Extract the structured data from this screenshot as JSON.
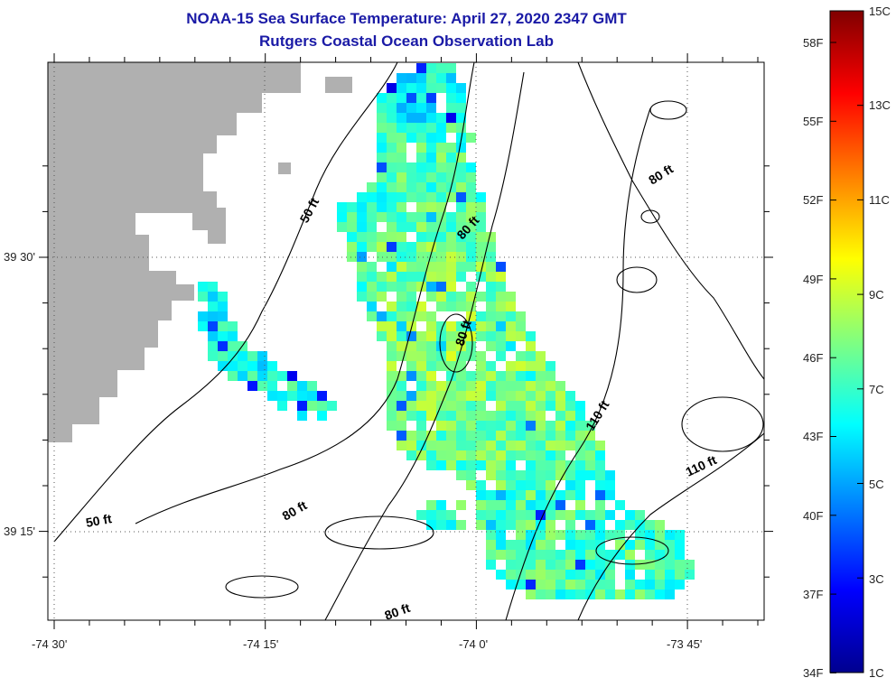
{
  "header": {
    "title": "NOAA-15 Sea Surface Temperature:  April 27, 2020 2347 GMT",
    "subtitle": "Rutgers Coastal Ocean Observation Lab"
  },
  "axes": {
    "longitude_labels": [
      "-74 30'",
      "-74 15'",
      "-74 0'",
      "-73 45'"
    ],
    "latitude_labels": [
      "39 30'",
      "39 15'"
    ]
  },
  "isobaths": [
    "50 ft",
    "80 ft",
    "80 ft",
    "80 ft",
    "110 ft",
    "110 ft",
    "50 ft",
    "80 ft",
    "80 ft"
  ],
  "colorbar": {
    "fahrenheit": [
      "58F",
      "55F",
      "52F",
      "49F",
      "46F",
      "43F",
      "40F",
      "37F",
      "34F"
    ],
    "celsius": [
      "15C",
      "13C",
      "11C",
      "9C",
      "7C",
      "5C",
      "3C",
      "1C"
    ],
    "range_c": [
      1,
      15
    ]
  },
  "colors": {
    "title": "#1a1aa6",
    "land": "#b0b0b0",
    "contour": "#000000"
  }
}
